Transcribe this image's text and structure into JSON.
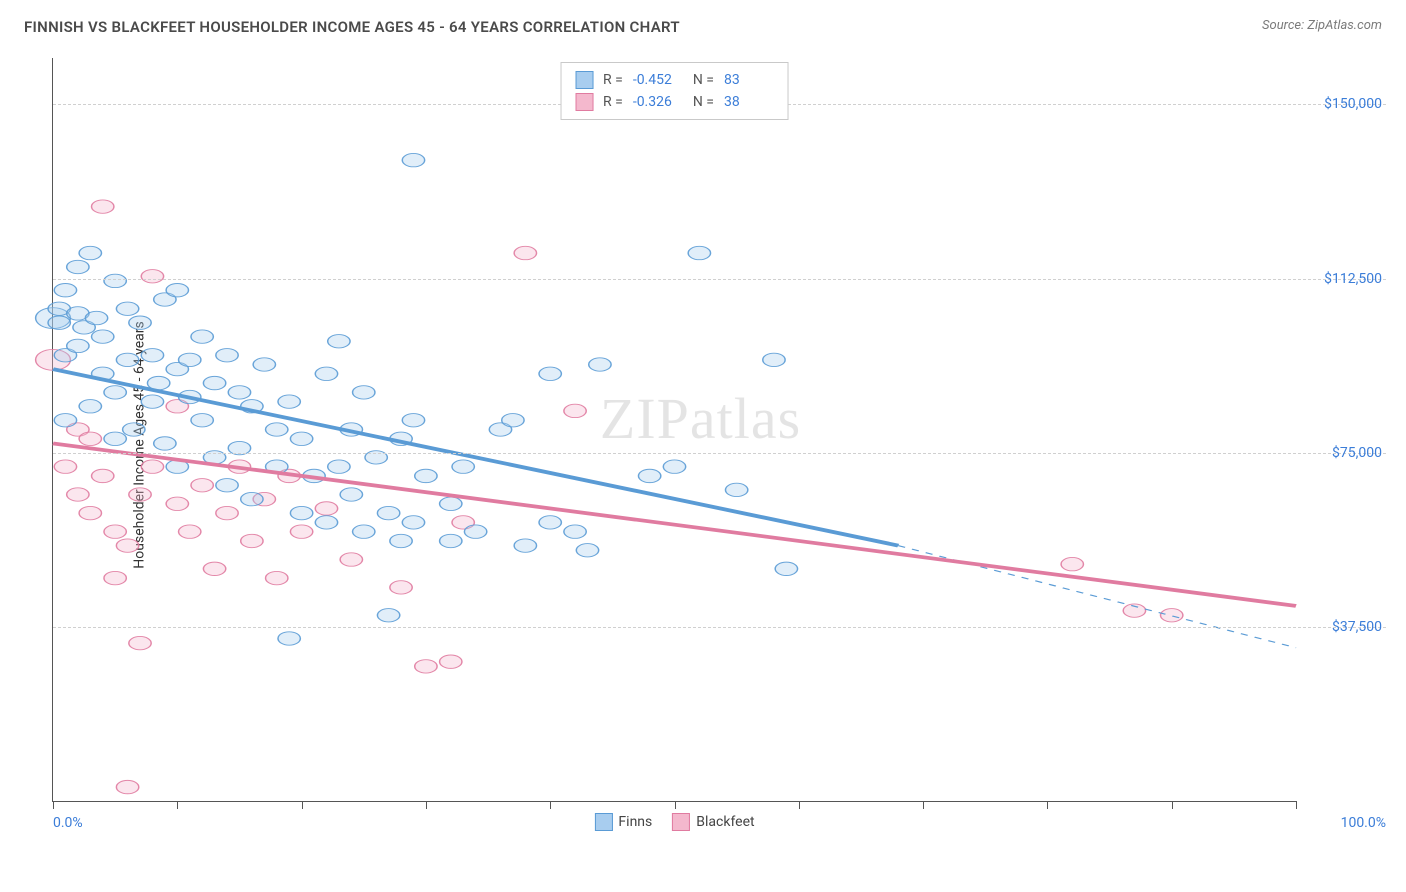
{
  "header": {
    "title": "FINNISH VS BLACKFEET HOUSEHOLDER INCOME AGES 45 - 64 YEARS CORRELATION CHART",
    "source": "Source: ZipAtlas.com"
  },
  "watermark": "ZIPatlas",
  "chart": {
    "type": "scatter",
    "ylabel": "Householder Income Ages 45 - 64 years",
    "background_color": "#ffffff",
    "grid_color": "#d0d0d0",
    "axis_color": "#555555",
    "value_label_color": "#3b7dd8",
    "xlim": [
      0,
      100
    ],
    "ylim": [
      0,
      160000
    ],
    "xtick_positions": [
      0,
      10,
      20,
      30,
      40,
      50,
      60,
      70,
      80,
      90,
      100
    ],
    "xtick_labels": {
      "0": "0.0%",
      "100": "100.0%"
    },
    "ytick_positions": [
      37500,
      75000,
      112500,
      150000
    ],
    "ytick_labels": [
      "$37,500",
      "$75,000",
      "$112,500",
      "$150,000"
    ],
    "marker_radius": 9,
    "marker_radius_large": 14,
    "marker_fill_opacity": 0.35,
    "marker_stroke_opacity": 0.9,
    "series": [
      {
        "name": "Finns",
        "color": "#5a9bd5",
        "fill": "#a8cdef",
        "R": "-0.452",
        "N": "83",
        "trend": {
          "x1": 0,
          "y1": 93000,
          "x2": 68,
          "y2": 55000,
          "width": 2.5,
          "dash_extend": {
            "x2": 100,
            "y2": 33000
          }
        },
        "points": [
          [
            0.5,
            106000
          ],
          [
            0.5,
            103000
          ],
          [
            1,
            96000
          ],
          [
            1,
            110000
          ],
          [
            1,
            82000
          ],
          [
            2,
            98000
          ],
          [
            2,
            105000
          ],
          [
            2,
            115000
          ],
          [
            2.5,
            102000
          ],
          [
            3,
            118000
          ],
          [
            3,
            85000
          ],
          [
            3.5,
            104000
          ],
          [
            4,
            100000
          ],
          [
            4,
            92000
          ],
          [
            5,
            112000
          ],
          [
            5,
            88000
          ],
          [
            5,
            78000
          ],
          [
            6,
            106000
          ],
          [
            6,
            95000
          ],
          [
            6.5,
            80000
          ],
          [
            7,
            103000
          ],
          [
            8,
            96000
          ],
          [
            8,
            86000
          ],
          [
            8.5,
            90000
          ],
          [
            9,
            108000
          ],
          [
            9,
            77000
          ],
          [
            10,
            110000
          ],
          [
            10,
            93000
          ],
          [
            10,
            72000
          ],
          [
            11,
            87000
          ],
          [
            11,
            95000
          ],
          [
            12,
            100000
          ],
          [
            12,
            82000
          ],
          [
            13,
            90000
          ],
          [
            13,
            74000
          ],
          [
            14,
            96000
          ],
          [
            14,
            68000
          ],
          [
            15,
            88000
          ],
          [
            15,
            76000
          ],
          [
            16,
            85000
          ],
          [
            16,
            65000
          ],
          [
            17,
            94000
          ],
          [
            18,
            80000
          ],
          [
            18,
            72000
          ],
          [
            19,
            86000
          ],
          [
            19,
            35000
          ],
          [
            20,
            78000
          ],
          [
            20,
            62000
          ],
          [
            21,
            70000
          ],
          [
            22,
            92000
          ],
          [
            22,
            60000
          ],
          [
            23,
            99000
          ],
          [
            23,
            72000
          ],
          [
            24,
            66000
          ],
          [
            24,
            80000
          ],
          [
            25,
            58000
          ],
          [
            25,
            88000
          ],
          [
            26,
            74000
          ],
          [
            27,
            62000
          ],
          [
            27,
            40000
          ],
          [
            28,
            78000
          ],
          [
            28,
            56000
          ],
          [
            29,
            82000
          ],
          [
            29,
            60000
          ],
          [
            29,
            138000
          ],
          [
            30,
            70000
          ],
          [
            32,
            64000
          ],
          [
            32,
            56000
          ],
          [
            33,
            72000
          ],
          [
            34,
            58000
          ],
          [
            36,
            80000
          ],
          [
            37,
            82000
          ],
          [
            38,
            55000
          ],
          [
            40,
            92000
          ],
          [
            40,
            60000
          ],
          [
            42,
            58000
          ],
          [
            43,
            54000
          ],
          [
            44,
            94000
          ],
          [
            48,
            70000
          ],
          [
            50,
            72000
          ],
          [
            52,
            118000
          ],
          [
            55,
            67000
          ],
          [
            58,
            95000
          ],
          [
            59,
            50000
          ]
        ],
        "large_points": [
          [
            0,
            104000
          ]
        ]
      },
      {
        "name": "Blackfeet",
        "color": "#e07ba0",
        "fill": "#f4b8cd",
        "R": "-0.326",
        "N": "38",
        "trend": {
          "x1": 0,
          "y1": 77000,
          "x2": 100,
          "y2": 42000,
          "width": 2.5
        },
        "points": [
          [
            1,
            72000
          ],
          [
            2,
            66000
          ],
          [
            2,
            80000
          ],
          [
            3,
            78000
          ],
          [
            3,
            62000
          ],
          [
            4,
            128000
          ],
          [
            4,
            70000
          ],
          [
            5,
            58000
          ],
          [
            5,
            48000
          ],
          [
            6,
            55000
          ],
          [
            7,
            66000
          ],
          [
            7,
            34000
          ],
          [
            8,
            72000
          ],
          [
            8,
            113000
          ],
          [
            10,
            64000
          ],
          [
            10,
            85000
          ],
          [
            11,
            58000
          ],
          [
            12,
            68000
          ],
          [
            13,
            50000
          ],
          [
            14,
            62000
          ],
          [
            15,
            72000
          ],
          [
            16,
            56000
          ],
          [
            17,
            65000
          ],
          [
            18,
            48000
          ],
          [
            19,
            70000
          ],
          [
            20,
            58000
          ],
          [
            22,
            63000
          ],
          [
            24,
            52000
          ],
          [
            28,
            46000
          ],
          [
            30,
            29000
          ],
          [
            32,
            30000
          ],
          [
            33,
            60000
          ],
          [
            38,
            118000
          ],
          [
            42,
            84000
          ],
          [
            82,
            51000
          ],
          [
            87,
            41000
          ],
          [
            90,
            40000
          ],
          [
            6,
            3000
          ]
        ],
        "large_points": [
          [
            0,
            95000
          ]
        ]
      }
    ],
    "legend": {
      "items": [
        "Finns",
        "Blackfeet"
      ]
    }
  }
}
